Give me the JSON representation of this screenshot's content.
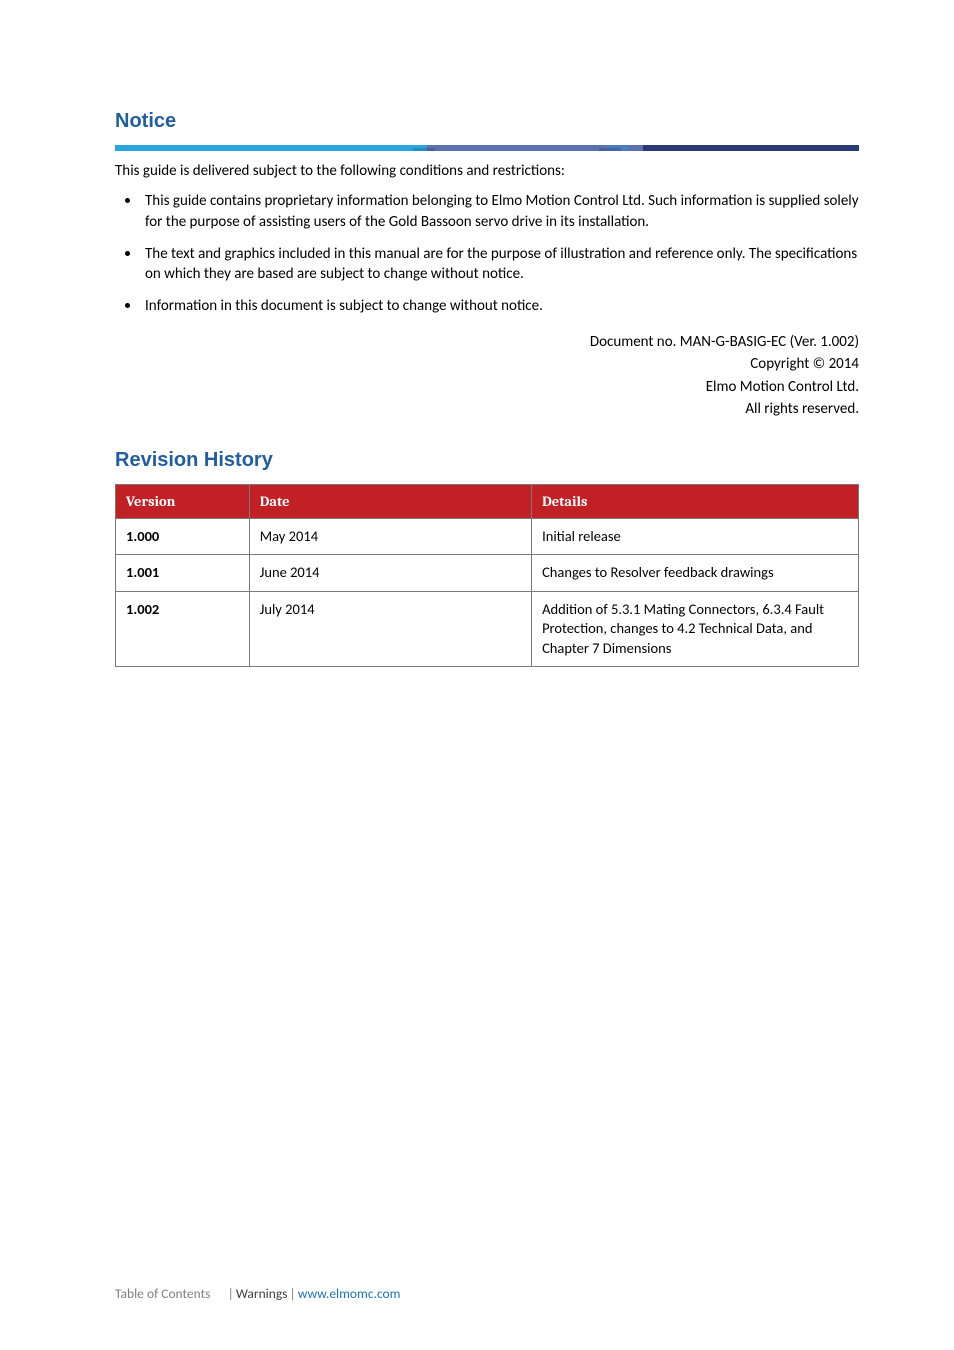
{
  "colors": {
    "heading": "#215e9e",
    "accent_segments": [
      {
        "color": "#2aa5e0",
        "left_pct": 0,
        "width_pct": 42,
        "z": 1
      },
      {
        "color": "#5a73ae",
        "left_pct": 42,
        "width_pct": 29,
        "z": 2
      },
      {
        "color": "#4e7abf",
        "left_pct": 66,
        "width_pct": 3,
        "z": 3
      },
      {
        "color": "#2b3a73",
        "left_pct": 69,
        "width_pct": 31,
        "z": 0
      }
    ],
    "accent_shadows": [
      {
        "left_pct": 40,
        "width_pct": 3
      },
      {
        "left_pct": 65,
        "width_pct": 3
      }
    ],
    "table_header_bg": "#c12025",
    "table_header_fg": "#ffffff",
    "table_border": "#7a7a7a",
    "footer_gray": "#808080",
    "footer_dark": "#404040",
    "footer_link": "#1e73b8"
  },
  "notice": {
    "title": "Notice",
    "intro": "This guide is delivered subject to the following conditions and restrictions:",
    "bullets": [
      "This guide contains proprietary information belonging to Elmo Motion Control Ltd. Such information is supplied solely for the purpose of assisting users of the Gold Bassoon servo drive in its installation.",
      "The text and graphics included in this manual are for the purpose of illustration and reference only. The specifications on which they are based are subject to change without notice.",
      "Information in this document is subject to change without notice."
    ],
    "doc_meta": {
      "doc_no": "Document no. MAN-G-BASIG-EC (Ver. 1.002)",
      "copyright": "Copyright © 2014",
      "company": "Elmo Motion Control Ltd.",
      "rights": "All rights reserved."
    }
  },
  "revision": {
    "title": "Revision History",
    "table": {
      "col_widths_pct": [
        18,
        38,
        44
      ],
      "columns": [
        "Version",
        "Date",
        "Details"
      ],
      "rows": [
        {
          "version": "1.000",
          "date": "May 2014",
          "details": "Initial release"
        },
        {
          "version": "1.001",
          "date": "June 2014",
          "details": "Changes to Resolver feedback drawings"
        },
        {
          "version": "1.002",
          "date": "July 2014",
          "details": "Addition of 5.3.1 Mating Connectors, 6.3.4 Fault Protection, changes to 4.2 Technical Data, and Chapter 7 Dimensions"
        }
      ]
    }
  },
  "footer": {
    "toc": "Table of Contents",
    "warnings": "Warnings",
    "link_text": "www.elmomc.com"
  }
}
